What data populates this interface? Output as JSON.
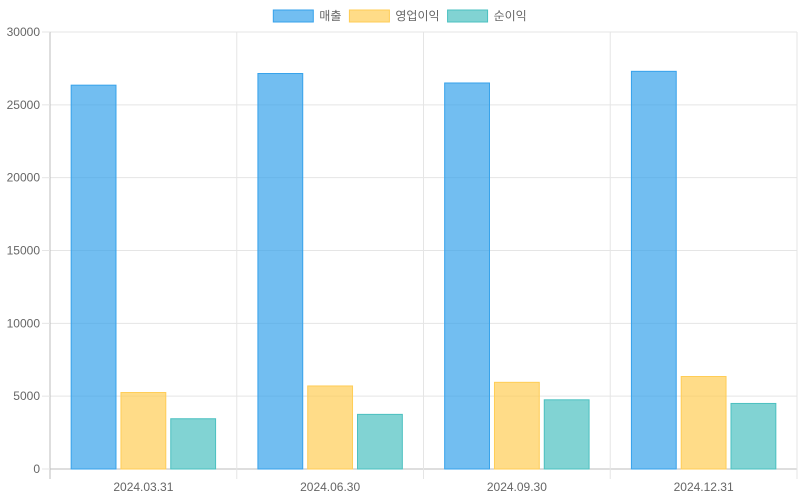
{
  "chart_data": {
    "type": "bar",
    "categories": [
      "2024.03.31",
      "2024.06.30",
      "2024.09.30",
      "2024.12.31"
    ],
    "series": [
      {
        "name": "매출",
        "values": [
          26350,
          27150,
          26500,
          27300
        ],
        "fill": "#36A2EB",
        "stroke": "#36A2EB"
      },
      {
        "name": "영업이익",
        "values": [
          5250,
          5700,
          5950,
          6350
        ],
        "fill": "#FFCD56",
        "stroke": "#FFCD56"
      },
      {
        "name": "순이익",
        "values": [
          3450,
          3750,
          4750,
          4500
        ],
        "fill": "#4BC0C0",
        "stroke": "#4BC0C0"
      }
    ],
    "yticks": [
      0,
      5000,
      10000,
      15000,
      20000,
      25000,
      30000
    ],
    "ylim": [
      0,
      30000
    ],
    "legend_position": "top-center",
    "grid": true
  }
}
